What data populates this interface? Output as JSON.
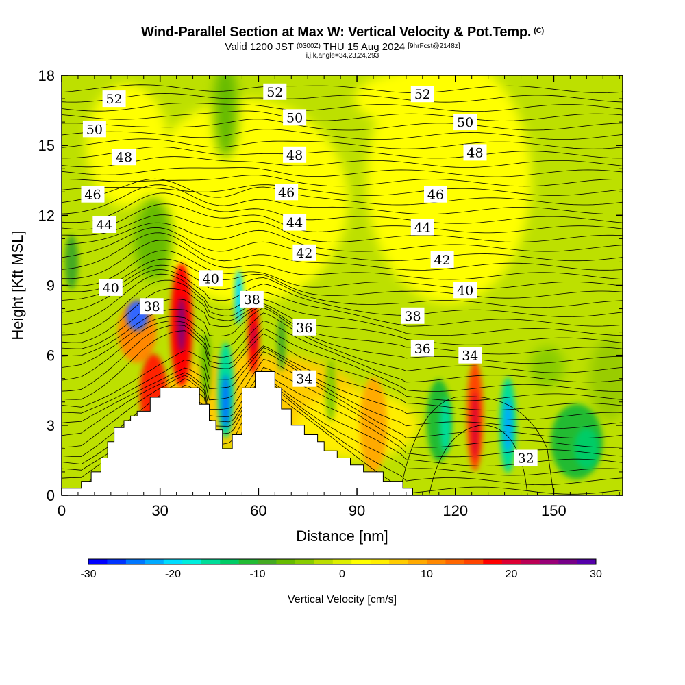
{
  "header": {
    "title": "Wind-Parallel Section at Max W: Vertical Velocity & Pot.Temp.",
    "copyright": "(C)",
    "valid_prefix": "Valid 1200 JST",
    "valid_utc": "(0300Z)",
    "valid_date": "THU 15 Aug 2024",
    "forecast": "[9hrFcst@2148z]",
    "indices": "i,j,k,angle=34,23,24,293"
  },
  "chart_data": {
    "type": "heatmap",
    "xlabel": "Distance [nm]",
    "ylabel": "Height [Kft MSL]",
    "xlim": [
      0,
      171
    ],
    "ylim": [
      0,
      18
    ],
    "x_ticks": [
      0,
      30,
      60,
      90,
      120,
      150
    ],
    "y_ticks": [
      0,
      3,
      6,
      9,
      12,
      15,
      18
    ],
    "colorbar": {
      "title": "Vertical Velocity [cm/s]",
      "range": [
        -30,
        30
      ],
      "tick_values": [
        -30,
        -20,
        -10,
        0,
        10,
        20,
        30
      ],
      "colors": [
        "#0000ff",
        "#0033ff",
        "#0077ff",
        "#00aaff",
        "#00ddff",
        "#00eedd",
        "#00dd99",
        "#00cc66",
        "#22bb33",
        "#44aa22",
        "#66bb00",
        "#88cc00",
        "#bbdd00",
        "#ddee00",
        "#ffff00",
        "#ffee00",
        "#ffcc00",
        "#ffaa00",
        "#ff8800",
        "#ff6600",
        "#ff4400",
        "#ff0000",
        "#dd0033",
        "#bb0055",
        "#990077",
        "#770088",
        "#5500aa"
      ]
    },
    "contour_field": "potential temperature",
    "contour_labels": [
      {
        "value": "52",
        "x": 16,
        "y": 17.0
      },
      {
        "value": "52",
        "x": 65,
        "y": 17.3
      },
      {
        "value": "52",
        "x": 110,
        "y": 17.2
      },
      {
        "value": "50",
        "x": 10,
        "y": 15.7
      },
      {
        "value": "50",
        "x": 71,
        "y": 16.2
      },
      {
        "value": "50",
        "x": 123,
        "y": 16.0
      },
      {
        "value": "48",
        "x": 19,
        "y": 14.5
      },
      {
        "value": "48",
        "x": 71,
        "y": 14.6
      },
      {
        "value": "48",
        "x": 126,
        "y": 14.7
      },
      {
        "value": "46",
        "x": 9.5,
        "y": 12.9
      },
      {
        "value": "46",
        "x": 68.5,
        "y": 13.0
      },
      {
        "value": "46",
        "x": 114,
        "y": 12.9
      },
      {
        "value": "44",
        "x": 13,
        "y": 11.6
      },
      {
        "value": "44",
        "x": 71,
        "y": 11.7
      },
      {
        "value": "44",
        "x": 110,
        "y": 11.5
      },
      {
        "value": "42",
        "x": 74,
        "y": 10.4
      },
      {
        "value": "42",
        "x": 116,
        "y": 10.1
      },
      {
        "value": "40",
        "x": 15,
        "y": 8.9
      },
      {
        "value": "40",
        "x": 45.5,
        "y": 9.3
      },
      {
        "value": "40",
        "x": 123,
        "y": 8.8
      },
      {
        "value": "38",
        "x": 27.5,
        "y": 8.1
      },
      {
        "value": "38",
        "x": 58,
        "y": 8.4
      },
      {
        "value": "38",
        "x": 107,
        "y": 7.7
      },
      {
        "value": "36",
        "x": 74,
        "y": 7.2
      },
      {
        "value": "36",
        "x": 110,
        "y": 6.3
      },
      {
        "value": "34",
        "x": 74,
        "y": 5.0
      },
      {
        "value": "34",
        "x": 124.5,
        "y": 6.0
      },
      {
        "value": "32",
        "x": 141.5,
        "y": 1.6
      }
    ]
  }
}
